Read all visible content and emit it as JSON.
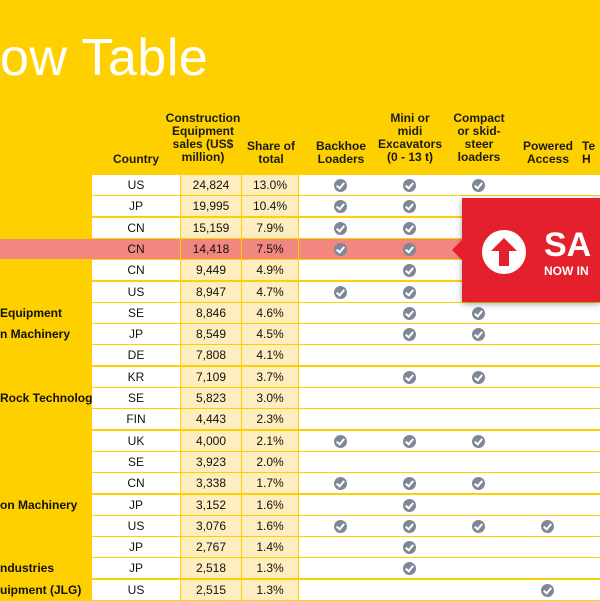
{
  "title": "ow Table",
  "headers": {
    "country": "Country",
    "sales": "Construction\nEquipment\nsales (US$\nmillion)",
    "share": "Share of\ntotal",
    "backhoe": "Backhoe\nLoaders",
    "mini": "Mini or\nmidi\nExcavators\n(0 - 13 t)",
    "compact": "Compact\nor skid-\nsteer\nloaders",
    "powered": "Powered\nAccess",
    "tel": "Te\nH"
  },
  "rows": [
    {
      "name": "",
      "country": "US",
      "sales": "24,824",
      "share": "13.0%",
      "checks": [
        1,
        1,
        1,
        0
      ]
    },
    {
      "name": "",
      "country": "JP",
      "sales": "19,995",
      "share": "10.4%",
      "checks": [
        1,
        1,
        0,
        0
      ]
    },
    {
      "name": "",
      "country": "CN",
      "sales": "15,159",
      "share": "7.9%",
      "checks": [
        1,
        1,
        0,
        0
      ]
    },
    {
      "name": "",
      "country": "CN",
      "sales": "14,418",
      "share": "7.5%",
      "checks": [
        1,
        1,
        0,
        0
      ],
      "highlight": true
    },
    {
      "name": "",
      "country": "CN",
      "sales": "9,449",
      "share": "4.9%",
      "checks": [
        0,
        1,
        0,
        0
      ]
    },
    {
      "name": "",
      "country": "US",
      "sales": "8,947",
      "share": "4.7%",
      "checks": [
        1,
        1,
        0,
        0
      ]
    },
    {
      "name": "Equipment",
      "country": "SE",
      "sales": "8,846",
      "share": "4.6%",
      "checks": [
        0,
        1,
        1,
        0
      ]
    },
    {
      "name": "n Machinery",
      "country": "JP",
      "sales": "8,549",
      "share": "4.5%",
      "checks": [
        0,
        1,
        1,
        0
      ]
    },
    {
      "name": "",
      "country": "DE",
      "sales": "7,808",
      "share": "4.1%",
      "checks": [
        0,
        0,
        0,
        0
      ]
    },
    {
      "name": "",
      "country": "KR",
      "sales": "7,109",
      "share": "3.7%",
      "checks": [
        0,
        1,
        1,
        0
      ]
    },
    {
      "name": "Rock Technology",
      "country": "SE",
      "sales": "5,823",
      "share": "3.0%",
      "checks": [
        0,
        0,
        0,
        0
      ]
    },
    {
      "name": "",
      "country": "FIN",
      "sales": "4,443",
      "share": "2.3%",
      "checks": [
        0,
        0,
        0,
        0
      ]
    },
    {
      "name": "",
      "country": "UK",
      "sales": "4,000",
      "share": "2.1%",
      "checks": [
        1,
        1,
        1,
        0
      ]
    },
    {
      "name": "",
      "country": "SE",
      "sales": "3,923",
      "share": "2.0%",
      "checks": [
        0,
        0,
        0,
        0
      ]
    },
    {
      "name": "",
      "country": "CN",
      "sales": "3,338",
      "share": "1.7%",
      "checks": [
        1,
        1,
        1,
        0
      ]
    },
    {
      "name": "on Machinery",
      "country": "JP",
      "sales": "3,152",
      "share": "1.6%",
      "checks": [
        0,
        1,
        0,
        0
      ]
    },
    {
      "name": "",
      "country": "US",
      "sales": "3,076",
      "share": "1.6%",
      "checks": [
        1,
        1,
        1,
        1
      ]
    },
    {
      "name": "",
      "country": "JP",
      "sales": "2,767",
      "share": "1.4%",
      "checks": [
        0,
        1,
        0,
        0
      ]
    },
    {
      "name": "ndustries",
      "country": "JP",
      "sales": "2,518",
      "share": "1.3%",
      "checks": [
        0,
        1,
        0,
        0
      ]
    },
    {
      "name": "uipment (JLG)",
      "country": "US",
      "sales": "2,515",
      "share": "1.3%",
      "checks": [
        0,
        0,
        0,
        1
      ]
    }
  ],
  "banner": {
    "text1": "SA",
    "text2": "NOW IN"
  }
}
